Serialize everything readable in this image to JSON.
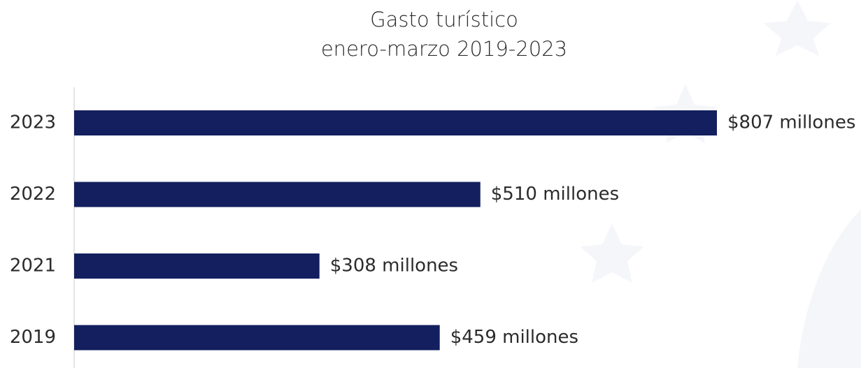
{
  "chart_data": {
    "type": "bar",
    "orientation": "horizontal",
    "title": "Gasto turístico",
    "subtitle": "enero-marzo 2019-2023",
    "categories": [
      "2023",
      "2022",
      "2021",
      "2019"
    ],
    "values": [
      807,
      510,
      308,
      459
    ],
    "value_labels": [
      "$807 millones",
      "$510 millones",
      "$308 millones",
      "$459 millones"
    ],
    "color": "#131f5e"
  }
}
